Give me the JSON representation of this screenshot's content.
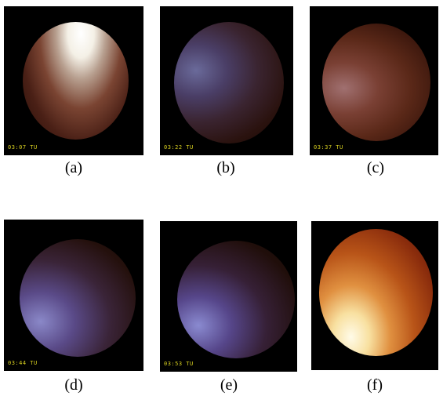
{
  "panels": [
    {
      "label": "(a)",
      "timestamp": "03:07 TU"
    },
    {
      "label": "(b)",
      "timestamp": "03:22 TU"
    },
    {
      "label": "(c)",
      "timestamp": "03:37 TU"
    },
    {
      "label": "(d)",
      "timestamp": "03:44 TU"
    },
    {
      "label": "(e)",
      "timestamp": "03:53 TU"
    },
    {
      "label": "(f)"
    }
  ]
}
